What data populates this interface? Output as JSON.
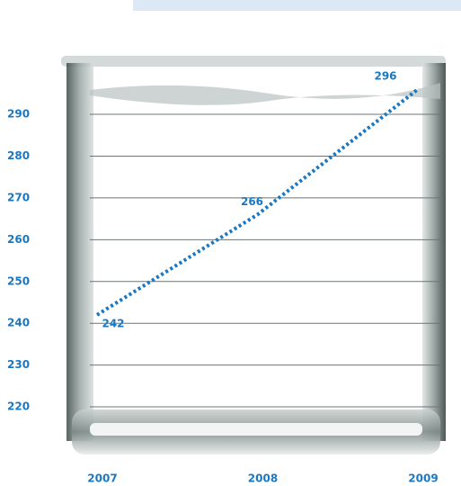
{
  "chart_data": {
    "type": "line",
    "categories": [
      "2007",
      "2008",
      "2009"
    ],
    "series": [
      {
        "values": [
          242,
          266,
          296
        ],
        "color": "#1a78c2"
      }
    ],
    "ylim": [
      212,
      300
    ],
    "yticks": [
      220,
      230,
      240,
      250,
      260,
      270,
      280,
      290
    ],
    "grid": true
  }
}
